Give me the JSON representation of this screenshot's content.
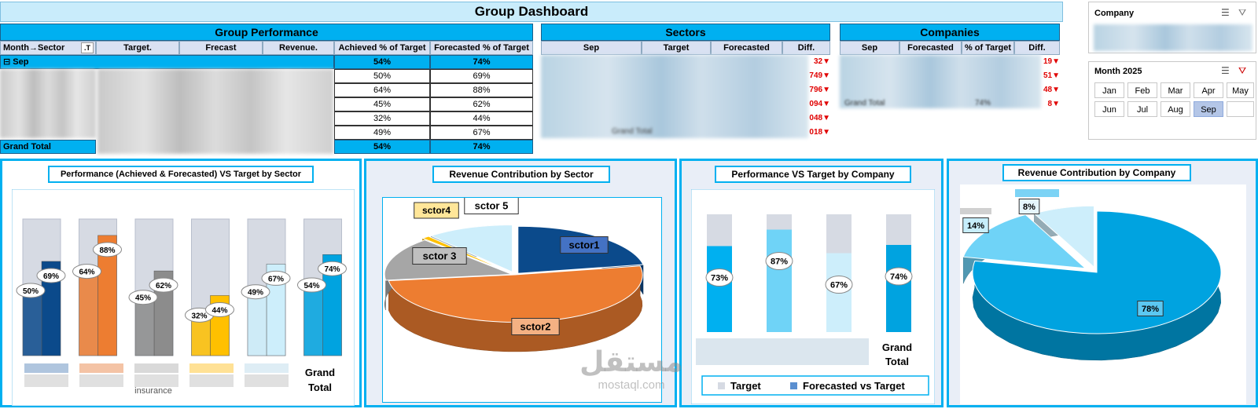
{
  "title": "Group Dashboard",
  "group_performance": {
    "title": "Group Performance",
    "columns": [
      "Month→Sector",
      "Target.",
      "Frecast",
      "Revenue.",
      "Achieved % of Target",
      "Forecasted % of Target"
    ],
    "month_row": {
      "label": "⊟ Sep",
      "achieved": "54%",
      "forecasted": "74%"
    },
    "rows": [
      {
        "achieved": "50%",
        "forecasted": "69%"
      },
      {
        "achieved": "64%",
        "forecasted": "88%"
      },
      {
        "achieved": "45%",
        "forecasted": "62%"
      },
      {
        "achieved": "32%",
        "forecasted": "44%"
      },
      {
        "achieved": "49%",
        "forecasted": "67%"
      }
    ],
    "grand_total": {
      "label": "Grand Total",
      "achieved": "54%",
      "forecasted": "74%"
    }
  },
  "sectors": {
    "title": "Sectors",
    "columns": [
      "Sep",
      "Target",
      "Forecasted",
      "Diff."
    ],
    "diff_fragments": [
      "32▼",
      "749▼",
      "796▼",
      "094▼",
      "048▼"
    ],
    "grand_total_fragment": "Grand Total",
    "total_diff_fragment": "018▼"
  },
  "companies": {
    "title": "Companies",
    "columns": [
      "Sep",
      "Forecasted",
      "% of Target",
      "Diff."
    ],
    "diff_fragments": [
      "19▼",
      "51▼",
      "48▼"
    ],
    "total_fragment": "Grand Total",
    "total_pct": "74%",
    "total_diff_fragment": "8▼"
  },
  "slicer_company": {
    "title": "Company"
  },
  "slicer_month": {
    "title": "Month 2025",
    "months": [
      "Jan",
      "Feb",
      "Mar",
      "Apr",
      "May",
      "Jun",
      "Jul",
      "Aug",
      "Sep",
      ""
    ],
    "selected": "Sep"
  },
  "chart_data": [
    {
      "type": "bar",
      "title": "Performance (Achieved & Forecasted) VS Target by Sector",
      "categories": [
        "",
        "",
        "",
        "",
        "",
        "Grand Total"
      ],
      "series": [
        {
          "values": [
            50,
            64,
            45,
            32,
            49,
            54
          ]
        },
        {
          "values": [
            69,
            88,
            62,
            44,
            67,
            74
          ]
        }
      ],
      "achieved_labels": [
        "50%",
        "64%",
        "45%",
        "32%",
        "49%",
        "54%"
      ],
      "forecast_labels": [
        "69%",
        "88%",
        "62%",
        "44%",
        "67%",
        "74%"
      ],
      "colors": [
        "#0b4a8b",
        "#ed7d31",
        "#8c8c8c",
        "#ffc000",
        "#cdeefb",
        "#00a3e0"
      ],
      "target_color": "#d6dae3",
      "ylim": [
        0,
        100
      ],
      "xlabel_fragment": "insurance"
    },
    {
      "type": "pie",
      "title": "Revenue Contribution by Sector",
      "slices": [
        {
          "name": "sctor1",
          "value": 22,
          "color": "#0b4a8b"
        },
        {
          "name": "sctor2",
          "value": 51,
          "color": "#ed7d31"
        },
        {
          "name": "sctor 3",
          "value": 15,
          "color": "#a6a6a6"
        },
        {
          "name": "sctor4",
          "value": 1,
          "color": "#ffc000"
        },
        {
          "name": "sctor 5",
          "value": 11,
          "color": "#cdeefb"
        }
      ]
    },
    {
      "type": "bar",
      "title": "Performance VS Target by Company",
      "categories": [
        "",
        "",
        "",
        "Grand Total"
      ],
      "values": [
        73,
        87,
        67,
        74
      ],
      "labels": [
        "73%",
        "87%",
        "67%",
        "74%"
      ],
      "colors": [
        "#00b0f0",
        "#6fd3f7",
        "#cdeefb",
        "#00a3e0"
      ],
      "ylim": [
        0,
        100
      ],
      "legend": [
        "Target",
        "Forecasted vs Target"
      ],
      "legend_colors": [
        "#d6dae3",
        "#5b8fd0"
      ]
    },
    {
      "type": "pie",
      "title": "Revenue Contribution by Company",
      "slices": [
        {
          "label": "78%",
          "value": 78,
          "color": "#00a3e0"
        },
        {
          "label": "14%",
          "value": 14,
          "color": "#6fd3f7"
        },
        {
          "label": "8%",
          "value": 8,
          "color": "#cdeefb"
        }
      ]
    }
  ],
  "watermark": {
    "arabic": "مستقل",
    "latin": "mostaql.com"
  }
}
